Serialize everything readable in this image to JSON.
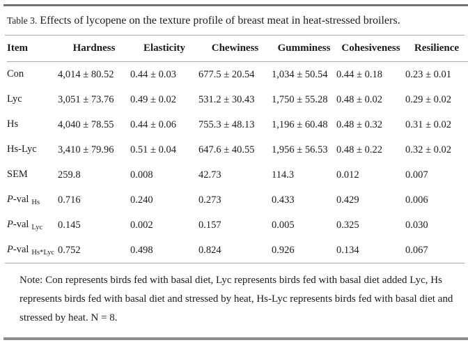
{
  "caption": {
    "label": "Table 3.",
    "text": "Effects of lycopene on the texture profile of breast meat in heat-stressed broilers."
  },
  "colors": {
    "text": "#1b1b1b",
    "rule_thick": "#8c8c8c",
    "rule_thin": "#a8a8a8",
    "background": "#ffffff"
  },
  "table": {
    "columns": [
      "Item",
      "Hardness",
      "Elasticity",
      "Chewiness",
      "Gumminess",
      "Cohesiveness",
      "Resilience"
    ],
    "rows": [
      {
        "item_prefix": "",
        "item": "Con",
        "item_sub": "",
        "cells": [
          "4,014 ± 80.52",
          "0.44 ± 0.03",
          "677.5 ± 20.54",
          "1,034 ± 50.54",
          "0.44 ± 0.18",
          "0.23 ± 0.01"
        ]
      },
      {
        "item_prefix": "",
        "item": "Lyc",
        "item_sub": "",
        "cells": [
          "3,051 ± 73.76",
          "0.49 ± 0.02",
          "531.2 ± 30.43",
          "1,750 ± 55.28",
          "0.48 ± 0.02",
          "0.29 ± 0.02"
        ]
      },
      {
        "item_prefix": "",
        "item": "Hs",
        "item_sub": "",
        "cells": [
          "4,040 ± 78.55",
          "0.44 ± 0.06",
          "755.3 ± 48.13",
          "1,196 ± 60.48",
          "0.48 ± 0.32",
          "0.31 ± 0.02"
        ]
      },
      {
        "item_prefix": "",
        "item": "Hs-Lyc",
        "item_sub": "",
        "cells": [
          "3,410 ± 79.96",
          "0.51 ± 0.04",
          "647.6 ± 40.55",
          "1,956 ± 56.53",
          "0.48 ± 0.22",
          "0.32 ± 0.02"
        ]
      },
      {
        "item_prefix": "",
        "item": "SEM",
        "item_sub": "",
        "cells": [
          "259.8",
          "0.008",
          "42.73",
          "114.3",
          "0.012",
          "0.007"
        ]
      },
      {
        "item_prefix": "P",
        "item": "-val",
        "item_sub": "Hs",
        "cells": [
          "0.716",
          "0.240",
          "0.273",
          "0.433",
          "0.429",
          "0.006"
        ]
      },
      {
        "item_prefix": "P",
        "item": "-val",
        "item_sub": "Lyc",
        "cells": [
          "0.145",
          "0.002",
          "0.157",
          "0.005",
          "0.325",
          "0.030"
        ]
      },
      {
        "item_prefix": "P",
        "item": "-val",
        "item_sub": "Hs*Lyc",
        "cells": [
          "0.752",
          "0.498",
          "0.824",
          "0.926",
          "0.134",
          "0.067"
        ]
      }
    ]
  },
  "note": "Note: Con represents birds fed with basal diet, Lyc represents birds fed with basal diet added Lyc, Hs represents birds fed with basal diet and stressed by heat, Hs-Lyc represents birds fed with basal diet and stressed by heat. N = 8."
}
